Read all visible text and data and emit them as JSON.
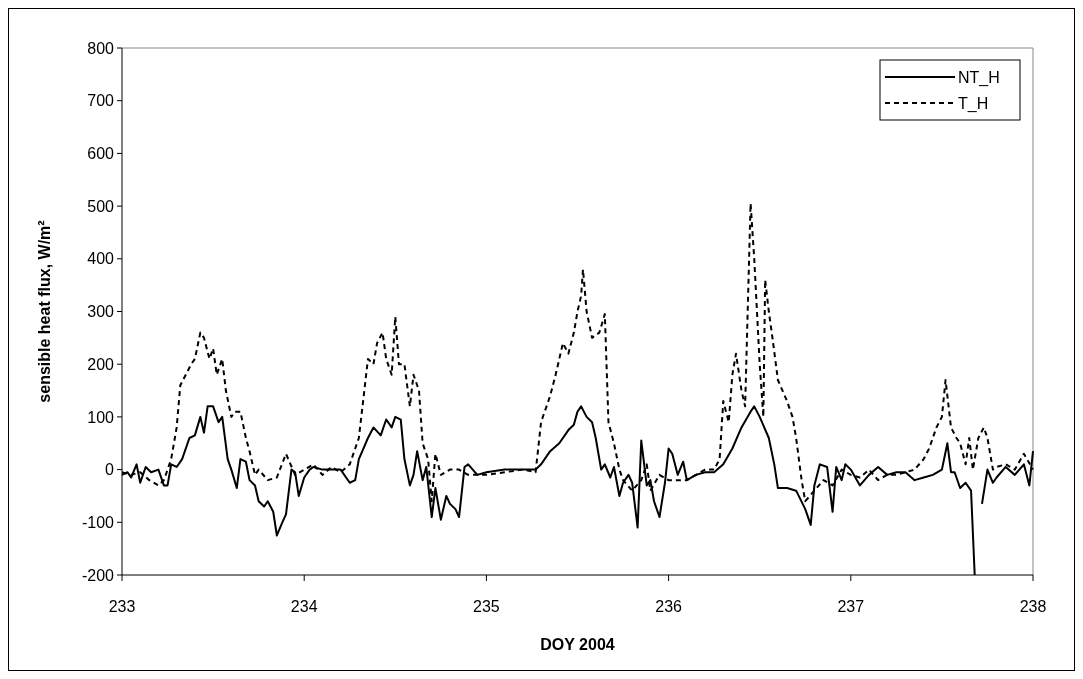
{
  "chart_data": {
    "type": "line",
    "xlabel": "DOY 2004",
    "ylabel": "sensible heat flux, W/m²",
    "xlim": [
      233,
      238
    ],
    "xticks": [
      233,
      234,
      235,
      236,
      237,
      238
    ],
    "ylim": [
      -200,
      800
    ],
    "yticks": [
      -200,
      -100,
      0,
      100,
      200,
      300,
      400,
      500,
      600,
      700,
      800
    ],
    "grid": false,
    "legend": "top right",
    "marker": "none",
    "series": [
      {
        "name": "NT_H",
        "color": "#000000",
        "line_style": "solid",
        "x": [
          233.0,
          233.03,
          233.05,
          233.08,
          233.1,
          233.13,
          233.16,
          233.2,
          233.23,
          233.25,
          233.27,
          233.3,
          233.33,
          233.37,
          233.4,
          233.43,
          233.45,
          233.47,
          233.5,
          233.53,
          233.55,
          233.58,
          233.6,
          233.63,
          233.65,
          233.68,
          233.7,
          233.73,
          233.75,
          233.78,
          233.8,
          233.83,
          233.85,
          233.88,
          233.9,
          233.93,
          233.95,
          233.97,
          234.0,
          234.03,
          234.05,
          234.1,
          234.15,
          234.2,
          234.25,
          234.28,
          234.3,
          234.35,
          234.38,
          234.42,
          234.45,
          234.48,
          234.5,
          234.53,
          234.55,
          234.58,
          234.6,
          234.62,
          234.65,
          234.67,
          234.7,
          234.72,
          234.75,
          234.78,
          234.8,
          234.83,
          234.85,
          234.88,
          234.9,
          234.95,
          235.0,
          235.1,
          235.2,
          235.27,
          235.3,
          235.35,
          235.4,
          235.45,
          235.48,
          235.5,
          235.52,
          235.55,
          235.58,
          235.6,
          235.63,
          235.65,
          235.68,
          235.7,
          235.73,
          235.75,
          235.78,
          235.8,
          235.83,
          235.85,
          235.88,
          235.9,
          235.92,
          235.95,
          235.98,
          236.0,
          236.02,
          236.05,
          236.08,
          236.1,
          236.15,
          236.2,
          236.25,
          236.3,
          236.35,
          236.4,
          236.45,
          236.47,
          236.5,
          236.55,
          236.58,
          236.6,
          236.65,
          236.7,
          236.75,
          236.78,
          236.8,
          236.83,
          236.87,
          236.9,
          236.92,
          236.95,
          236.97,
          237.0,
          237.05,
          237.1,
          237.15,
          237.2,
          237.25,
          237.3,
          237.35,
          237.4,
          237.45,
          237.5,
          237.53,
          237.55,
          237.57,
          237.6,
          237.63,
          237.66,
          237.68,
          237.7,
          237.72,
          237.75,
          237.78,
          237.8,
          237.85,
          237.9,
          237.95,
          237.98,
          238.0
        ],
        "values": [
          -10,
          -5,
          -15,
          10,
          -25,
          5,
          -5,
          0,
          -30,
          -30,
          10,
          5,
          20,
          60,
          65,
          100,
          70,
          120,
          120,
          90,
          100,
          20,
          0,
          -35,
          20,
          15,
          -20,
          -30,
          -60,
          -70,
          -60,
          -80,
          -125,
          -100,
          -85,
          0,
          -5,
          -50,
          -15,
          0,
          5,
          0,
          0,
          0,
          -25,
          -20,
          20,
          60,
          80,
          65,
          95,
          80,
          100,
          95,
          20,
          -30,
          -10,
          35,
          -20,
          5,
          -90,
          -35,
          -95,
          -50,
          -65,
          -75,
          -90,
          5,
          10,
          -10,
          -5,
          0,
          0,
          0,
          10,
          35,
          50,
          75,
          85,
          110,
          120,
          100,
          90,
          60,
          0,
          10,
          -15,
          5,
          -50,
          -25,
          -10,
          -25,
          -110,
          55,
          -30,
          -20,
          -60,
          -90,
          -25,
          40,
          30,
          -10,
          15,
          -20,
          -10,
          -5,
          -5,
          10,
          40,
          80,
          110,
          120,
          100,
          60,
          10,
          -35,
          -35,
          -40,
          -75,
          -105,
          -30,
          10,
          5,
          -80,
          5,
          -20,
          10,
          0,
          -30,
          -10,
          5,
          -10,
          -5,
          -5,
          -20,
          -15,
          -10,
          0,
          50,
          -5,
          -5,
          -35,
          -25,
          -40,
          -200,
          null,
          -65,
          0,
          -25,
          -15,
          5,
          -10,
          10,
          -30,
          35
        ]
      },
      {
        "name": "T_H",
        "color": "#000000",
        "line_style": "dashed",
        "x": [
          233.0,
          233.05,
          233.1,
          233.15,
          233.2,
          233.23,
          233.27,
          233.3,
          233.32,
          233.35,
          233.38,
          233.4,
          233.43,
          233.45,
          233.48,
          233.5,
          233.52,
          233.55,
          233.57,
          233.6,
          233.62,
          233.65,
          233.68,
          233.7,
          233.73,
          233.75,
          233.8,
          233.85,
          233.9,
          233.95,
          234.0,
          234.05,
          234.1,
          234.15,
          234.2,
          234.25,
          234.28,
          234.3,
          234.33,
          234.35,
          234.38,
          234.4,
          234.43,
          234.45,
          234.48,
          234.5,
          234.52,
          234.55,
          234.58,
          234.6,
          234.63,
          234.65,
          234.68,
          234.7,
          234.72,
          234.75,
          234.8,
          234.85,
          234.9,
          235.0,
          235.1,
          235.2,
          235.27,
          235.3,
          235.33,
          235.35,
          235.38,
          235.42,
          235.45,
          235.48,
          235.5,
          235.52,
          235.53,
          235.55,
          235.58,
          235.62,
          235.65,
          235.67,
          235.7,
          235.73,
          235.75,
          235.8,
          235.85,
          235.88,
          235.9,
          235.95,
          236.0,
          236.05,
          236.1,
          236.15,
          236.2,
          236.25,
          236.28,
          236.3,
          236.33,
          236.35,
          236.37,
          236.4,
          236.42,
          236.45,
          236.47,
          236.5,
          236.52,
          236.53,
          236.55,
          236.57,
          236.6,
          236.65,
          236.68,
          236.7,
          236.73,
          236.75,
          236.8,
          236.85,
          236.9,
          236.95,
          237.0,
          237.05,
          237.1,
          237.15,
          237.2,
          237.25,
          237.3,
          237.35,
          237.4,
          237.43,
          237.47,
          237.5,
          237.52,
          237.55,
          237.58,
          237.6,
          237.63,
          237.65,
          237.67,
          237.7,
          237.73,
          237.75,
          237.78,
          237.8,
          237.85,
          237.9,
          237.95,
          238.0
        ],
        "values": [
          -5,
          -10,
          -5,
          -20,
          -30,
          -20,
          20,
          80,
          160,
          180,
          200,
          210,
          260,
          250,
          210,
          230,
          180,
          210,
          150,
          100,
          110,
          110,
          60,
          35,
          -10,
          0,
          -20,
          -15,
          30,
          -10,
          0,
          10,
          -10,
          5,
          -5,
          10,
          40,
          60,
          150,
          210,
          200,
          240,
          260,
          210,
          180,
          290,
          200,
          200,
          120,
          180,
          150,
          50,
          20,
          -60,
          30,
          -10,
          0,
          0,
          -10,
          -10,
          -5,
          0,
          -5,
          90,
          120,
          140,
          180,
          240,
          220,
          260,
          300,
          330,
          380,
          300,
          250,
          260,
          295,
          90,
          50,
          0,
          -20,
          -40,
          -20,
          10,
          -40,
          -10,
          -20,
          -20,
          -20,
          -10,
          0,
          0,
          20,
          130,
          90,
          180,
          220,
          150,
          120,
          505,
          400,
          200,
          100,
          360,
          300,
          250,
          170,
          130,
          100,
          60,
          -20,
          -60,
          -40,
          -20,
          -30,
          0,
          -10,
          -15,
          0,
          -20,
          -10,
          -10,
          -5,
          0,
          20,
          40,
          80,
          100,
          170,
          80,
          60,
          50,
          10,
          60,
          0,
          60,
          80,
          60,
          0,
          5,
          10,
          0,
          30,
          0
        ]
      }
    ]
  }
}
